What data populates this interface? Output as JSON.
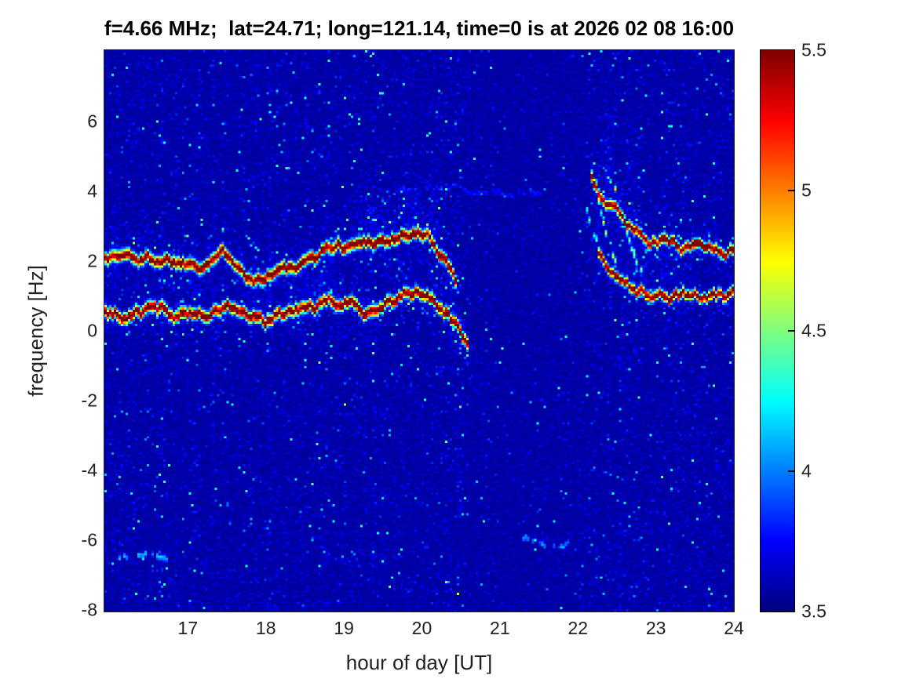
{
  "title": "f=4.66 MHz;  lat=24.71; long=121.14, time=0 is at 2026 02 08 16:00",
  "axes": {
    "xlabel": "hour of day [UT]",
    "ylabel": "frequency [Hz]",
    "xticks": [
      17,
      18,
      19,
      20,
      21,
      22,
      23,
      24
    ],
    "xticklabels": [
      "17",
      "18",
      "19",
      "20",
      "21",
      "22",
      "23",
      "24"
    ],
    "yticks": [
      6,
      4,
      2,
      0,
      -2,
      -4,
      -6,
      -8
    ],
    "yticklabels": [
      "6",
      "4",
      "2",
      "0",
      "-2",
      "-4",
      "-6",
      "-8"
    ],
    "xlim": [
      15.93,
      24
    ],
    "ylim": [
      -8.05,
      8.05
    ]
  },
  "colorbar": {
    "ticks": [
      5.5,
      5,
      4.5,
      4,
      3.5
    ],
    "ticklabels": [
      "5.5",
      "5",
      "4.5",
      "4",
      "3.5"
    ],
    "clim": [
      3.5,
      5.5
    ],
    "colormap": "jet"
  },
  "chart_data": {
    "type": "heatmap",
    "title": "f=4.66 MHz;  lat=24.71; long=121.14, time=0 is at 2026 02 08 16:00",
    "xlabel": "hour of day [UT]",
    "ylabel": "frequency [Hz]",
    "xlim": [
      15.93,
      24
    ],
    "ylim": [
      -8.05,
      8.05
    ],
    "clim": [
      3.5,
      5.5
    ],
    "colormap": "jet",
    "background_level": 3.6,
    "speckle_max": 4.3,
    "quiet_interval_hours": [
      20.62,
      22.08
    ],
    "dark_column_hours": [
      21.0,
      21.3
    ],
    "traces": [
      {
        "name": "upper-doppler-trace-early",
        "role": "main",
        "intensity": 1.0,
        "sigma_hz": 0.15,
        "cloud": 1.0,
        "cloud_sigma_hz": 0.75,
        "points": [
          [
            15.9,
            2.15
          ],
          [
            16.2,
            2.2
          ],
          [
            16.45,
            2.05
          ],
          [
            16.7,
            2.15
          ],
          [
            16.95,
            2.05
          ],
          [
            17.15,
            2.1
          ],
          [
            17.35,
            2.35
          ],
          [
            17.55,
            2.25
          ],
          [
            17.7,
            2.1
          ],
          [
            17.85,
            1.65
          ],
          [
            18.0,
            1.8
          ],
          [
            18.15,
            1.95
          ],
          [
            18.3,
            1.8
          ],
          [
            18.5,
            1.8
          ],
          [
            18.65,
            2.1
          ],
          [
            18.8,
            2.4
          ],
          [
            19.0,
            2.45
          ],
          [
            19.2,
            2.5
          ],
          [
            19.45,
            2.7
          ],
          [
            19.6,
            2.6
          ],
          [
            19.8,
            2.85
          ],
          [
            19.95,
            2.75
          ],
          [
            20.1,
            2.6
          ],
          [
            20.25,
            2.2
          ],
          [
            20.35,
            1.95
          ],
          [
            20.45,
            1.55
          ]
        ]
      },
      {
        "name": "lower-doppler-trace-early",
        "role": "main",
        "intensity": 1.0,
        "sigma_hz": 0.15,
        "cloud": 1.0,
        "cloud_sigma_hz": 0.75,
        "points": [
          [
            15.9,
            0.5
          ],
          [
            16.2,
            0.45
          ],
          [
            16.5,
            0.6
          ],
          [
            16.8,
            0.5
          ],
          [
            17.0,
            0.55
          ],
          [
            17.2,
            0.6
          ],
          [
            17.5,
            0.75
          ],
          [
            17.7,
            0.55
          ],
          [
            17.85,
            0.25
          ],
          [
            18.0,
            0.05
          ],
          [
            18.15,
            0.3
          ],
          [
            18.35,
            0.4
          ],
          [
            18.6,
            0.6
          ],
          [
            18.8,
            0.65
          ],
          [
            19.0,
            0.7
          ],
          [
            19.3,
            0.65
          ],
          [
            19.55,
            0.95
          ],
          [
            19.75,
            1.05
          ],
          [
            19.95,
            1.1
          ],
          [
            20.15,
            0.9
          ],
          [
            20.3,
            0.5
          ],
          [
            20.45,
            0.1
          ],
          [
            20.6,
            -0.25
          ]
        ]
      },
      {
        "name": "upper-doppler-trace-late",
        "role": "main",
        "intensity": 1.0,
        "sigma_hz": 0.13,
        "cloud": 0.9,
        "cloud_sigma_hz": 0.55,
        "points": [
          [
            22.15,
            4.45
          ],
          [
            22.3,
            3.95
          ],
          [
            22.45,
            3.5
          ],
          [
            22.6,
            3.1
          ],
          [
            22.75,
            2.85
          ],
          [
            22.95,
            2.7
          ],
          [
            23.1,
            2.65
          ],
          [
            23.25,
            2.5
          ],
          [
            23.4,
            2.45
          ],
          [
            23.55,
            2.55
          ],
          [
            23.7,
            2.45
          ],
          [
            23.85,
            2.45
          ],
          [
            24.05,
            2.4
          ]
        ]
      },
      {
        "name": "lower-doppler-trace-late",
        "role": "main",
        "intensity": 1.0,
        "sigma_hz": 0.13,
        "cloud": 0.9,
        "cloud_sigma_hz": 0.55,
        "points": [
          [
            22.25,
            2.3
          ],
          [
            22.4,
            1.9
          ],
          [
            22.55,
            1.6
          ],
          [
            22.75,
            1.2
          ],
          [
            22.95,
            1.0
          ],
          [
            23.15,
            0.95
          ],
          [
            23.35,
            1.0
          ],
          [
            23.5,
            0.95
          ],
          [
            23.65,
            0.8
          ],
          [
            23.85,
            0.85
          ],
          [
            24.05,
            0.85
          ]
        ]
      },
      {
        "name": "descending-streak-1",
        "role": "streak",
        "intensity": 0.42,
        "sigma_hz": 0.1,
        "dash": 0.45,
        "cloud": 0.4,
        "cloud_sigma_hz": 0.4,
        "points": [
          [
            22.2,
            4.6
          ],
          [
            22.3,
            3.3
          ],
          [
            22.4,
            2.4
          ],
          [
            22.5,
            2.0
          ]
        ]
      },
      {
        "name": "descending-streak-2",
        "role": "streak",
        "intensity": 0.42,
        "sigma_hz": 0.1,
        "dash": 0.45,
        "cloud": 0.4,
        "cloud_sigma_hz": 0.4,
        "points": [
          [
            22.45,
            4.4
          ],
          [
            22.6,
            3.1
          ],
          [
            22.75,
            2.1
          ],
          [
            22.9,
            1.6
          ]
        ]
      },
      {
        "name": "descending-streak-3",
        "role": "streak",
        "intensity": 0.35,
        "sigma_hz": 0.1,
        "dash": 0.5,
        "cloud": 0.3,
        "cloud_sigma_hz": 0.4,
        "points": [
          [
            22.1,
            3.6
          ],
          [
            22.2,
            2.8
          ],
          [
            22.35,
            2.25
          ]
        ]
      },
      {
        "name": "halo-above-upper-trace",
        "role": "halo",
        "cloud": 0.9,
        "cloud_sigma_hz": 0.8,
        "points": [
          [
            19.15,
            3.1
          ],
          [
            19.7,
            3.3
          ],
          [
            20.3,
            3.0
          ]
        ]
      },
      {
        "name": "halo-midband-18h",
        "role": "halo",
        "cloud": 0.9,
        "cloud_sigma_hz": 0.7,
        "points": [
          [
            18.3,
            1.2
          ],
          [
            18.6,
            1.3
          ],
          [
            18.95,
            1.5
          ]
        ]
      },
      {
        "name": "halo-late-cluster",
        "role": "halo",
        "cloud": 0.7,
        "cloud_sigma_hz": 1.1,
        "points": [
          [
            22.2,
            3.2
          ],
          [
            22.7,
            2.3
          ],
          [
            23.3,
            1.8
          ]
        ]
      },
      {
        "name": "halo-vertical-22.3h",
        "role": "halo",
        "cloud": 1.5,
        "cloud_sigma_hz": 1.3,
        "points": [
          [
            22.28,
            5.0
          ],
          [
            22.45,
            4.7
          ]
        ]
      },
      {
        "name": "halo-vertical-22.7h",
        "role": "halo",
        "cloud": 0.8,
        "cloud_sigma_hz": 0.9,
        "points": [
          [
            22.6,
            4.4
          ],
          [
            22.78,
            4.0
          ]
        ]
      },
      {
        "name": "faint-line-minus6hz",
        "role": "faint",
        "intensity": 0.22,
        "sigma_hz": 0.08,
        "dash": 0.5,
        "points": [
          [
            21.3,
            -6.0
          ],
          [
            21.6,
            -6.05
          ],
          [
            21.9,
            -6.0
          ]
        ]
      },
      {
        "name": "faint-line-4hz",
        "role": "faint",
        "intensity": 0.12,
        "sigma_hz": 0.07,
        "dash": 0.3,
        "points": [
          [
            19.55,
            4.05
          ],
          [
            20.6,
            4.05
          ],
          [
            21.65,
            4.05
          ]
        ]
      },
      {
        "name": "faint-smudge-bottom-left",
        "role": "faint",
        "intensity": 0.25,
        "sigma_hz": 0.09,
        "dash": 0.45,
        "points": [
          [
            16.1,
            -6.5
          ],
          [
            16.4,
            -6.55
          ],
          [
            16.75,
            -6.7
          ]
        ]
      }
    ]
  }
}
